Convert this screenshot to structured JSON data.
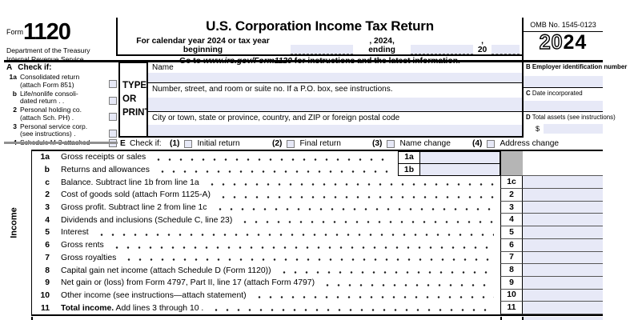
{
  "colors": {
    "field": "#e7e9f7",
    "gray_cell": "#b5b5b5",
    "border": "#000000",
    "row_line": "#565656"
  },
  "header": {
    "form_word": "Form",
    "form_number": "1120",
    "treasury": "Department of the Treasury",
    "irs": "Internal Revenue Service",
    "title": "U.S. Corporation Income Tax Return",
    "cal_prefix": "For calendar year 2024 or tax year beginning",
    "cal_mid": ", 2024, ending",
    "cal_suffix": ", 20",
    "goto_prefix": "Go to",
    "goto_url": "www.irs.gov/Form1120",
    "goto_suffix": "for instructions and the latest information.",
    "omb": "OMB No. 1545-0123",
    "year_outline": "20",
    "year_solid": "24"
  },
  "check_if": {
    "letter": "A",
    "heading": "Check if:",
    "items": [
      {
        "num": "1a",
        "line1": "Consolidated return",
        "line2": "(attach Form 851)"
      },
      {
        "num": "b",
        "line1": "Life/nonlife consoli-",
        "line2": "dated return .    ."
      },
      {
        "num": "2",
        "line1": "Personal holding co.",
        "line2": "(attach Sch. PH) ."
      },
      {
        "num": "3",
        "line1": "Personal service corp.",
        "line2": "(see instructions) ."
      },
      {
        "num": "4",
        "line1": "Schedule M-3 attached",
        "line2": ""
      }
    ]
  },
  "type_print": {
    "lines": [
      "TYPE",
      "OR",
      "PRINT"
    ]
  },
  "address": {
    "name_label": "Name",
    "street_label": "Number, street, and room or suite no. If a P.O. box, see instructions.",
    "city_label": "City or town, state or province, country, and ZIP or foreign postal code"
  },
  "right_fields": {
    "b_letter": "B",
    "b_label": "Employer identification number",
    "c_letter": "C",
    "c_label": "Date incorporated",
    "d_letter": "D",
    "d_label": "Total assets (see instructions)",
    "currency": "$"
  },
  "e_row": {
    "letter": "E",
    "text": "Check if:",
    "options": [
      {
        "num": "(1)",
        "label": "Initial return"
      },
      {
        "num": "(2)",
        "label": "Final return"
      },
      {
        "num": "(3)",
        "label": "Name change"
      },
      {
        "num": "(4)",
        "label": "Address change"
      }
    ]
  },
  "income": {
    "section_label": "Income",
    "rows": [
      {
        "num": "1a",
        "label": "Gross receipts or sales",
        "box": "1a",
        "inner": true
      },
      {
        "num": "b",
        "label": "Returns and allowances",
        "box": "1b",
        "inner": true
      },
      {
        "num": "c",
        "label": "Balance. Subtract line 1b from line 1a",
        "box": "1c"
      },
      {
        "num": "2",
        "label": "Cost of goods sold (attach Form 1125-A)",
        "box": "2"
      },
      {
        "num": "3",
        "label": "Gross profit. Subtract line 2 from line 1c",
        "box": "3"
      },
      {
        "num": "4",
        "label": "Dividends and inclusions (Schedule C, line 23)",
        "box": "4"
      },
      {
        "num": "5",
        "label": "Interest",
        "box": "5"
      },
      {
        "num": "6",
        "label": "Gross rents",
        "box": "6"
      },
      {
        "num": "7",
        "label": "Gross royalties",
        "box": "7"
      },
      {
        "num": "8",
        "label": "Capital gain net income (attach Schedule D (Form 1120))",
        "box": "8"
      },
      {
        "num": "9",
        "label": "Net gain or (loss) from Form 4797, Part II, line 17 (attach Form 4797)",
        "box": "9"
      },
      {
        "num": "10",
        "label": "Other income (see instructions—attach statement)",
        "box": "10"
      },
      {
        "num": "11",
        "bold_prefix": "Total income.",
        "label": "Add lines 3 through 10 .",
        "box": "11"
      }
    ]
  }
}
